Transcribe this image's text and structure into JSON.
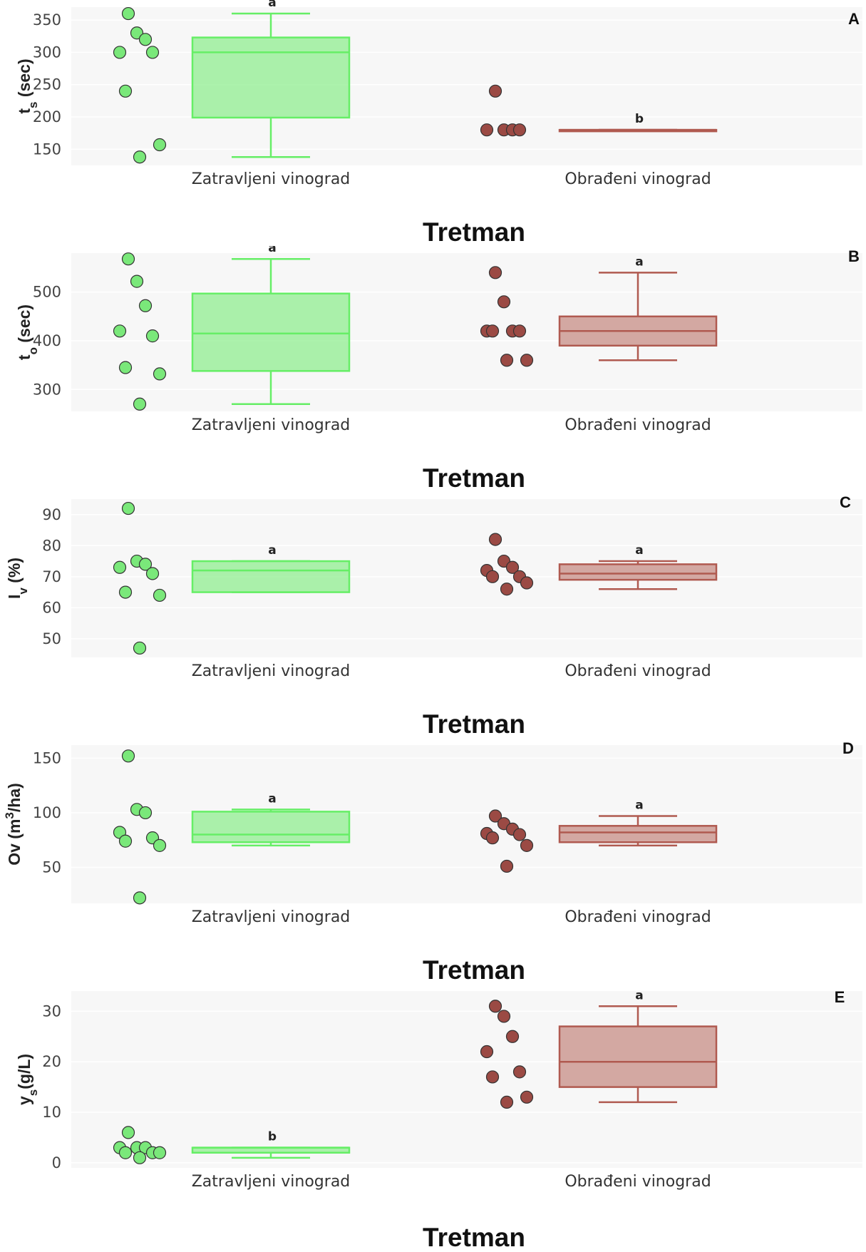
{
  "chart_data": [
    {
      "panel": "A",
      "type": "box",
      "ylabel": {
        "main": "t",
        "sub": "s",
        "rest": " (sec)"
      },
      "xlabel": "Tretman",
      "ylim": [
        125,
        370
      ],
      "yticks": [
        150,
        200,
        250,
        300,
        350
      ],
      "categories": [
        "Zatravljeni vinograd",
        "Obrađeni vinograd"
      ],
      "series": [
        {
          "values": [
            360,
            330,
            320,
            300,
            300,
            240,
            157,
            138
          ],
          "min": 138,
          "q1": 199,
          "median": 300,
          "q3": 323,
          "max": 360,
          "sig": "a",
          "color": "#90ee90",
          "edge": "#66ee66"
        },
        {
          "values": [
            240,
            180,
            180,
            180,
            180
          ],
          "min": 180,
          "q1": 180,
          "median": 180,
          "q3": 180,
          "max": 180,
          "sig": "b",
          "color": "#c9938c",
          "edge": "#b05a50"
        }
      ]
    },
    {
      "panel": "B",
      "type": "box",
      "ylabel": {
        "main": "t",
        "sub": "o",
        "rest": " (sec)"
      },
      "xlabel": "Tretman",
      "ylim": [
        255,
        580
      ],
      "yticks": [
        300,
        400,
        500
      ],
      "categories": [
        "Zatravljeni vinograd",
        "Obrađeni vinograd"
      ],
      "series": [
        {
          "values": [
            568,
            522,
            472,
            420,
            410,
            345,
            332,
            270
          ],
          "min": 270,
          "q1": 338,
          "median": 415,
          "q3": 497,
          "max": 568,
          "sig": "a",
          "color": "#90ee90",
          "edge": "#66ee66"
        },
        {
          "values": [
            540,
            480,
            420,
            420,
            420,
            420,
            360,
            360
          ],
          "min": 360,
          "q1": 390,
          "median": 420,
          "q3": 450,
          "max": 540,
          "sig": "a",
          "color": "#c9938c",
          "edge": "#b05a50"
        }
      ]
    },
    {
      "panel": "C",
      "type": "box",
      "ylabel": {
        "main": "I",
        "sub": "v",
        "rest": " (%)"
      },
      "xlabel": "Tretman",
      "ylim": [
        44,
        95
      ],
      "yticks": [
        50,
        60,
        70,
        80,
        90
      ],
      "categories": [
        "Zatravljeni vinograd",
        "Obrađeni vinograd"
      ],
      "series": [
        {
          "values": [
            92,
            75,
            74,
            73,
            71,
            65,
            64,
            47
          ],
          "min": 65,
          "q1": 65,
          "median": 72,
          "q3": 75,
          "max": 75,
          "sig": "a",
          "color": "#90ee90",
          "edge": "#66ee66"
        },
        {
          "values": [
            82,
            75,
            73,
            72,
            70,
            70,
            68,
            66
          ],
          "min": 66,
          "q1": 69,
          "median": 71,
          "q3": 74,
          "max": 75,
          "sig": "a",
          "color": "#c9938c",
          "edge": "#b05a50"
        }
      ]
    },
    {
      "panel": "D",
      "type": "box",
      "ylabel": {
        "main": "Ov (m",
        "sup": "3",
        "rest": "/ha)"
      },
      "xlabel": "Tretman",
      "ylim": [
        17,
        162
      ],
      "yticks": [
        50,
        100,
        150
      ],
      "categories": [
        "Zatravljeni vinograd",
        "Obrađeni vinograd"
      ],
      "series": [
        {
          "values": [
            152,
            103,
            100,
            82,
            77,
            74,
            70,
            22
          ],
          "min": 70,
          "q1": 73,
          "median": 80,
          "q3": 101,
          "max": 103,
          "sig": "a",
          "color": "#90ee90",
          "edge": "#66ee66"
        },
        {
          "values": [
            97,
            90,
            85,
            81,
            80,
            77,
            70,
            51
          ],
          "min": 70,
          "q1": 73,
          "median": 82,
          "q3": 88,
          "max": 97,
          "sig": "a",
          "color": "#c9938c",
          "edge": "#b05a50"
        }
      ]
    },
    {
      "panel": "E",
      "type": "box",
      "ylabel": {
        "main": "y",
        "sub": "s",
        "rest": "(g/L)"
      },
      "xlabel": "Tretman",
      "ylim": [
        -1,
        34
      ],
      "yticks": [
        0,
        10,
        20,
        30
      ],
      "categories": [
        "Zatravljeni vinograd",
        "Obrađeni vinograd"
      ],
      "series": [
        {
          "values": [
            6,
            3,
            3,
            3,
            2,
            2,
            2,
            1
          ],
          "min": 1,
          "q1": 2,
          "median": 3,
          "q3": 3,
          "max": 3,
          "sig": "b",
          "color": "#90ee90",
          "edge": "#66ee66"
        },
        {
          "values": [
            31,
            29,
            25,
            22,
            18,
            17,
            13,
            12
          ],
          "min": 12,
          "q1": 15,
          "median": 20,
          "q3": 27,
          "max": 31,
          "sig": "a",
          "color": "#c9938c",
          "edge": "#b05a50"
        }
      ]
    }
  ]
}
